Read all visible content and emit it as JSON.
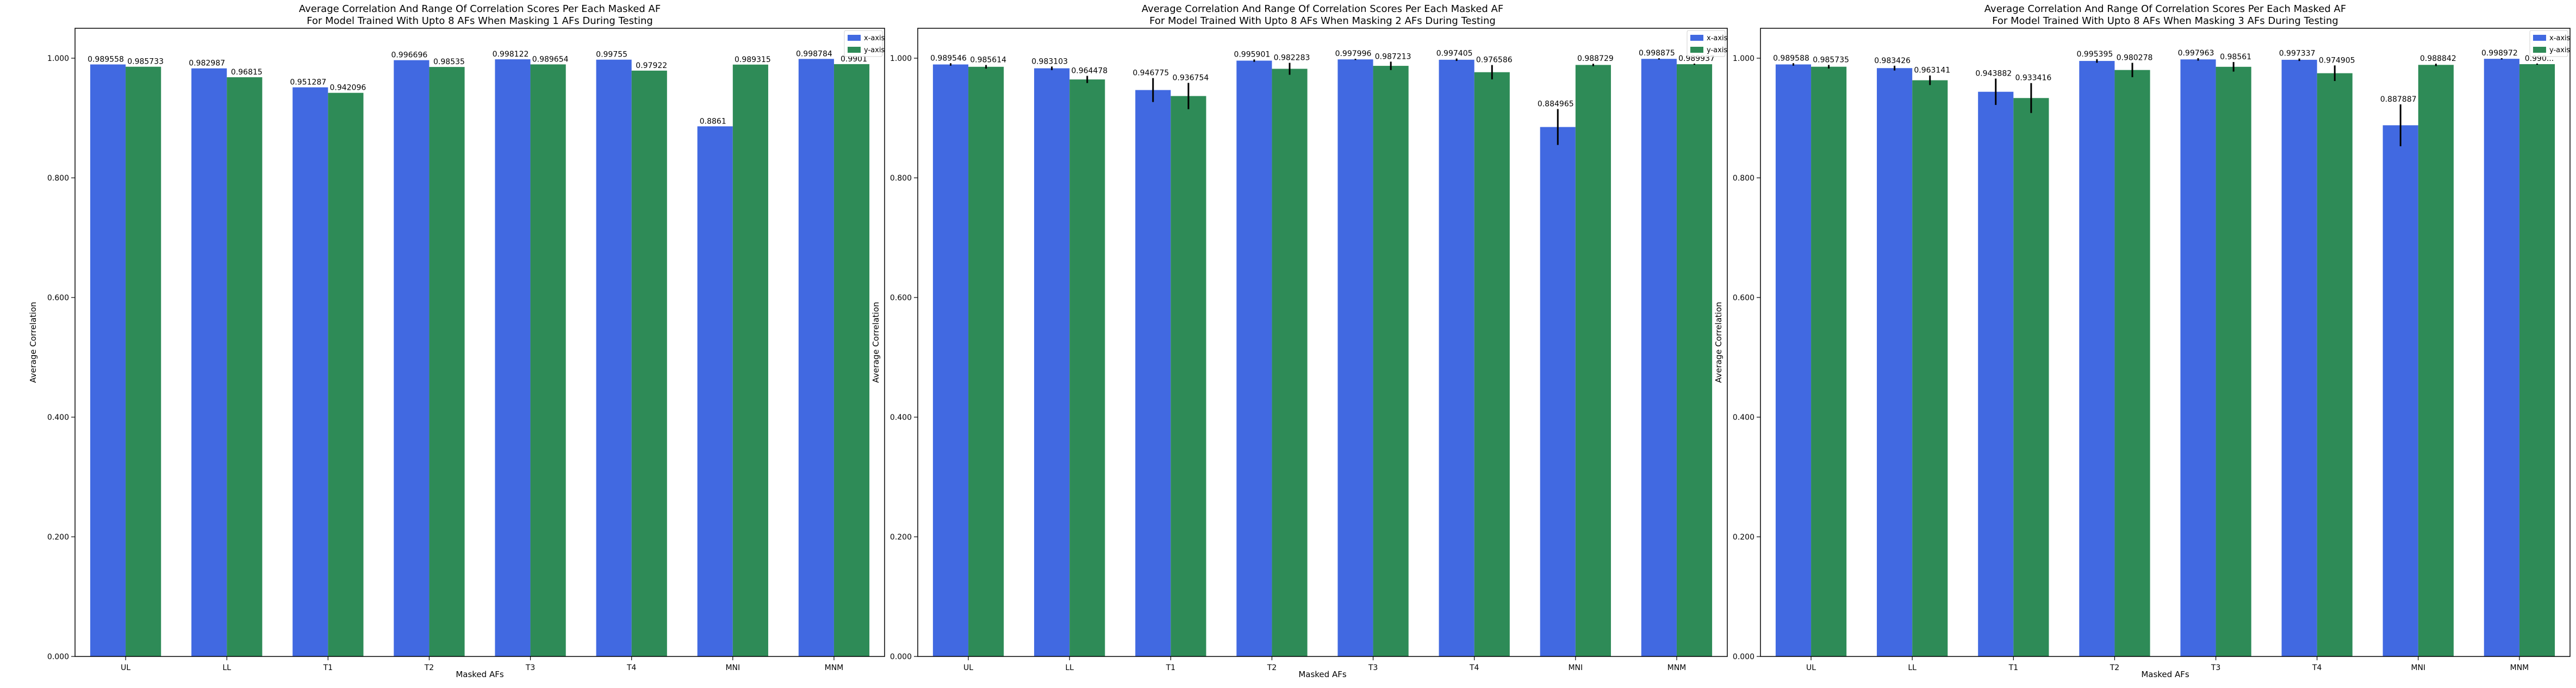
{
  "colors": {
    "x_series": "#4169e1",
    "y_series": "#2e8b57",
    "axis": "#000000",
    "errorbar": "#000000"
  },
  "chart_data": [
    {
      "type": "bar",
      "title": "Average Correlation And Range Of Correlation Scores Per Each Masked AF",
      "subtitle": "For Model Trained With Upto 8 AFs When Masking 1 AFs During Testing",
      "xlabel": "Masked AFs",
      "ylabel": "Average Correlation",
      "ylim": [
        0,
        1.05
      ],
      "yticks": [
        "0.000",
        "0.200",
        "0.400",
        "0.600",
        "0.800",
        "1.000"
      ],
      "legend": "top-right",
      "grid": false,
      "categories": [
        "UL",
        "LL",
        "T1",
        "T2",
        "T3",
        "T4",
        "MNI",
        "MNM"
      ],
      "series": [
        {
          "name": "x-axis",
          "values": [
            0.989558,
            0.982987,
            0.951287,
            0.996696,
            0.998122,
            0.99755,
            0.8861,
            0.998784
          ],
          "labels": [
            "0.989558",
            "0.982987",
            "0.951287",
            "0.996696",
            "0.998122",
            "0.99755",
            "0.8861",
            "0.998784"
          ],
          "err": [
            0,
            0,
            0,
            0,
            0,
            0,
            0,
            0
          ]
        },
        {
          "name": "y-axis",
          "values": [
            0.985733,
            0.96815,
            0.942096,
            0.98535,
            0.989654,
            0.97922,
            0.989315,
            0.9901
          ],
          "labels": [
            "0.985733",
            "0.96815",
            "0.942096",
            "0.98535",
            "0.989654",
            "0.97922",
            "0.989315",
            "0.9901"
          ],
          "err": [
            0,
            0,
            0,
            0,
            0,
            0,
            0,
            0
          ]
        }
      ]
    },
    {
      "type": "bar",
      "title": "Average Correlation And Range Of Correlation Scores Per Each Masked AF",
      "subtitle": "For Model Trained With Upto 8 AFs When Masking 2 AFs During Testing",
      "xlabel": "Masked AFs",
      "ylabel": "Average Correlation",
      "ylim": [
        0,
        1.05
      ],
      "yticks": [
        "0.000",
        "0.200",
        "0.400",
        "0.600",
        "0.800",
        "1.000"
      ],
      "legend": "top-right",
      "grid": false,
      "categories": [
        "UL",
        "LL",
        "T1",
        "T2",
        "T3",
        "T4",
        "MNI",
        "MNM"
      ],
      "series": [
        {
          "name": "x-axis",
          "values": [
            0.989546,
            0.983103,
            0.946775,
            0.995901,
            0.997996,
            0.997405,
            0.884965,
            0.998875
          ],
          "labels": [
            "0.989546",
            "0.983103",
            "0.946775",
            "0.995901",
            "0.997996",
            "0.997405",
            "0.884965",
            "0.998875"
          ],
          "err": [
            0.002,
            0.003,
            0.02,
            0.002,
            0.001,
            0.002,
            0.03,
            0.001
          ]
        },
        {
          "name": "y-axis",
          "values": [
            0.985614,
            0.964478,
            0.936754,
            0.982283,
            0.987213,
            0.976586,
            0.988729,
            0.989937
          ],
          "labels": [
            "0.985614",
            "0.964478",
            "0.936754",
            "0.982283",
            "0.987213",
            "0.976586",
            "0.988729",
            "0.989937"
          ],
          "err": [
            0.003,
            0.006,
            0.022,
            0.01,
            0.007,
            0.012,
            0.002,
            0.001
          ]
        }
      ]
    },
    {
      "type": "bar",
      "title": "Average Correlation And Range Of Correlation Scores Per Each Masked AF",
      "subtitle": "For Model Trained With Upto 8 AFs When Masking 3 AFs During Testing",
      "xlabel": "Masked AFs",
      "ylabel": "Average Correlation",
      "ylim": [
        0,
        1.05
      ],
      "yticks": [
        "0.000",
        "0.200",
        "0.400",
        "0.600",
        "0.800",
        "1.000"
      ],
      "legend": "top-right",
      "grid": false,
      "categories": [
        "UL",
        "LL",
        "T1",
        "T2",
        "T3",
        "T4",
        "MNI",
        "MNM"
      ],
      "series": [
        {
          "name": "x-axis",
          "values": [
            0.989588,
            0.983426,
            0.943882,
            0.995395,
            0.997963,
            0.997337,
            0.887887,
            0.998972
          ],
          "labels": [
            "0.989588",
            "0.983426",
            "0.943882",
            "0.995395",
            "0.997963",
            "0.997337",
            "0.887887",
            "0.998972"
          ],
          "err": [
            0.002,
            0.004,
            0.022,
            0.003,
            0.002,
            0.002,
            0.035,
            0.001
          ]
        },
        {
          "name": "y-axis",
          "values": [
            0.985735,
            0.963141,
            0.933416,
            0.980278,
            0.98561,
            0.974905,
            0.988842,
            0.990052
          ],
          "labels": [
            "0.985735",
            "0.963141",
            "0.933416",
            "0.980278",
            "0.98561",
            "0.974905",
            "0.988842",
            "0.990..."
          ],
          "err": [
            0.003,
            0.008,
            0.025,
            0.012,
            0.008,
            0.013,
            0.002,
            0.001
          ]
        }
      ]
    }
  ]
}
